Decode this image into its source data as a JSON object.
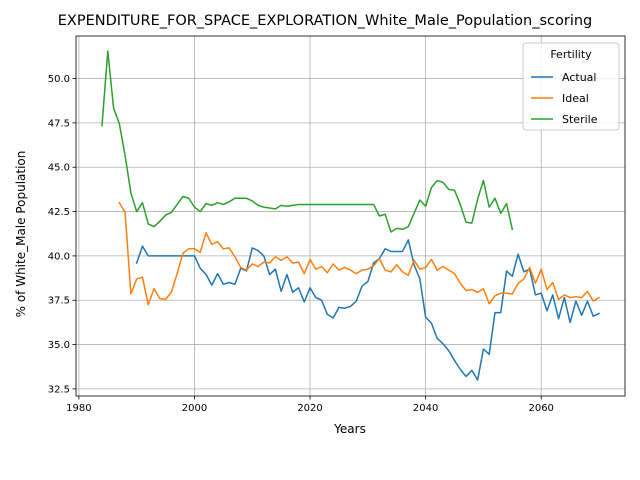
{
  "chart_data": {
    "type": "line",
    "title": "EXPENDITURE_FOR_SPACE_EXPLORATION_White_Male_Population_scoring",
    "xlabel": "Years",
    "ylabel": "% of White_Male Population",
    "xlim": [
      1979.5,
      2074.5
    ],
    "ylim": [
      32.1,
      52.4
    ],
    "xticks": [
      1980,
      2000,
      2020,
      2040,
      2060
    ],
    "xtick_labels": [
      "1980",
      "2000",
      "2020",
      "2040",
      "2060"
    ],
    "yticks": [
      32.5,
      35.0,
      37.5,
      40.0,
      42.5,
      45.0,
      47.5,
      50.0
    ],
    "ytick_labels": [
      "32.5",
      "35.0",
      "37.5",
      "40.0",
      "42.5",
      "45.0",
      "47.5",
      "50.0"
    ],
    "grid": true,
    "legend": {
      "title": "Fertility",
      "position": "top-right"
    },
    "series": [
      {
        "name": "Actual",
        "color": "#1f77b4",
        "x": [
          1990,
          1991,
          1992,
          1993,
          1994,
          1995,
          1996,
          1997,
          1998,
          1999,
          2000,
          2001,
          2002,
          2003,
          2004,
          2005,
          2006,
          2007,
          2008,
          2009,
          2010,
          2011,
          2012,
          2013,
          2014,
          2015,
          2016,
          2017,
          2018,
          2019,
          2020,
          2021,
          2022,
          2023,
          2024,
          2025,
          2026,
          2027,
          2028,
          2029,
          2030,
          2031,
          2032,
          2033,
          2034,
          2035,
          2036,
          2037,
          2038,
          2039,
          2040,
          2041,
          2042,
          2043,
          2044,
          2045,
          2046,
          2047,
          2048,
          2049,
          2050,
          2051,
          2052,
          2053,
          2054,
          2055,
          2056,
          2057,
          2058,
          2059,
          2060,
          2061,
          2062,
          2063,
          2064,
          2065,
          2066,
          2067,
          2068,
          2069,
          2070
        ],
        "y": [
          39.6,
          40.55,
          40.0,
          40.0,
          40.0,
          40.0,
          40.0,
          40.0,
          40.0,
          40.0,
          40.0,
          39.3,
          38.95,
          38.35,
          39.0,
          38.4,
          38.5,
          38.4,
          39.3,
          39.15,
          40.45,
          40.3,
          40.0,
          38.95,
          39.25,
          38.0,
          38.95,
          37.95,
          38.2,
          37.4,
          38.2,
          37.65,
          37.5,
          36.7,
          36.5,
          37.1,
          37.05,
          37.15,
          37.45,
          38.3,
          38.55,
          39.6,
          39.85,
          40.4,
          40.25,
          40.25,
          40.25,
          40.9,
          39.5,
          38.7,
          36.55,
          36.2,
          35.35,
          35.05,
          34.65,
          34.1,
          33.6,
          33.2,
          33.55,
          33.0,
          34.75,
          34.45,
          36.8,
          36.8,
          39.15,
          38.85,
          40.1,
          39.1,
          39.25,
          37.8,
          37.9,
          36.9,
          37.8,
          36.45,
          37.65,
          36.25,
          37.45,
          36.65,
          37.45,
          36.6,
          36.75
        ]
      },
      {
        "name": "Ideal",
        "color": "#ff7f0e",
        "x": [
          1987,
          1988,
          1989,
          1990,
          1991,
          1992,
          1993,
          1994,
          1995,
          1996,
          1997,
          1998,
          1999,
          2000,
          2001,
          2002,
          2003,
          2004,
          2005,
          2006,
          2007,
          2008,
          2009,
          2010,
          2011,
          2012,
          2013,
          2014,
          2015,
          2016,
          2017,
          2018,
          2019,
          2020,
          2021,
          2022,
          2023,
          2024,
          2025,
          2026,
          2027,
          2028,
          2029,
          2030,
          2031,
          2032,
          2033,
          2034,
          2035,
          2036,
          2037,
          2038,
          2039,
          2040,
          2041,
          2042,
          2043,
          2044,
          2045,
          2046,
          2047,
          2048,
          2049,
          2050,
          2051,
          2052,
          2053,
          2054,
          2055,
          2056,
          2057,
          2058,
          2059,
          2060,
          2061,
          2062,
          2063,
          2064,
          2065,
          2066,
          2067,
          2068,
          2069,
          2070
        ],
        "y": [
          43.0,
          42.45,
          37.85,
          38.7,
          38.8,
          37.25,
          38.15,
          37.6,
          37.55,
          37.95,
          39.0,
          40.15,
          40.4,
          40.4,
          40.2,
          41.3,
          40.65,
          40.8,
          40.4,
          40.45,
          39.95,
          39.35,
          39.2,
          39.55,
          39.4,
          39.65,
          39.6,
          39.95,
          39.75,
          39.95,
          39.6,
          39.65,
          39.0,
          39.8,
          39.25,
          39.4,
          39.05,
          39.55,
          39.2,
          39.35,
          39.2,
          39.0,
          39.2,
          39.25,
          39.45,
          39.85,
          39.2,
          39.1,
          39.5,
          39.1,
          38.9,
          39.75,
          39.25,
          39.35,
          39.8,
          39.2,
          39.4,
          39.2,
          39.0,
          38.45,
          38.05,
          38.1,
          37.95,
          38.15,
          37.3,
          37.75,
          37.9,
          37.9,
          37.85,
          38.45,
          38.7,
          39.35,
          38.45,
          39.25,
          38.1,
          38.5,
          37.55,
          37.8,
          37.65,
          37.7,
          37.65,
          38.0,
          37.45,
          37.65
        ]
      },
      {
        "name": "Sterile",
        "color": "#2ca02c",
        "x": [
          1984,
          1985,
          1986,
          1987,
          1988,
          1989,
          1990,
          1991,
          1992,
          1993,
          1994,
          1995,
          1996,
          1997,
          1998,
          1999,
          2000,
          2001,
          2002,
          2003,
          2004,
          2005,
          2006,
          2007,
          2008,
          2009,
          2010,
          2011,
          2012,
          2013,
          2014,
          2015,
          2016,
          2017,
          2018,
          2019,
          2020,
          2021,
          2022,
          2023,
          2024,
          2025,
          2026,
          2027,
          2028,
          2029,
          2030,
          2031,
          2032,
          2033,
          2034,
          2035,
          2036,
          2037,
          2038,
          2039,
          2040,
          2041,
          2042,
          2043,
          2044,
          2045,
          2046,
          2047,
          2048,
          2049,
          2050,
          2051,
          2052,
          2053,
          2054,
          2055
        ],
        "y": [
          47.35,
          51.55,
          48.35,
          47.45,
          45.65,
          43.55,
          42.5,
          43.0,
          41.8,
          41.65,
          41.95,
          42.3,
          42.45,
          42.9,
          43.35,
          43.25,
          42.75,
          42.5,
          42.95,
          42.85,
          43.0,
          42.9,
          43.05,
          43.25,
          43.25,
          43.25,
          43.1,
          42.85,
          42.75,
          42.7,
          42.65,
          42.85,
          42.8,
          42.85,
          42.9,
          42.9,
          42.9,
          42.9,
          42.9,
          42.9,
          42.9,
          42.9,
          42.9,
          42.9,
          42.9,
          42.9,
          42.9,
          42.9,
          42.25,
          42.35,
          41.35,
          41.55,
          41.5,
          41.65,
          42.4,
          43.15,
          42.8,
          43.85,
          44.25,
          44.15,
          43.75,
          43.7,
          42.9,
          41.9,
          41.85,
          43.2,
          44.25,
          42.75,
          43.25,
          42.4,
          42.95,
          41.5
        ]
      }
    ]
  }
}
